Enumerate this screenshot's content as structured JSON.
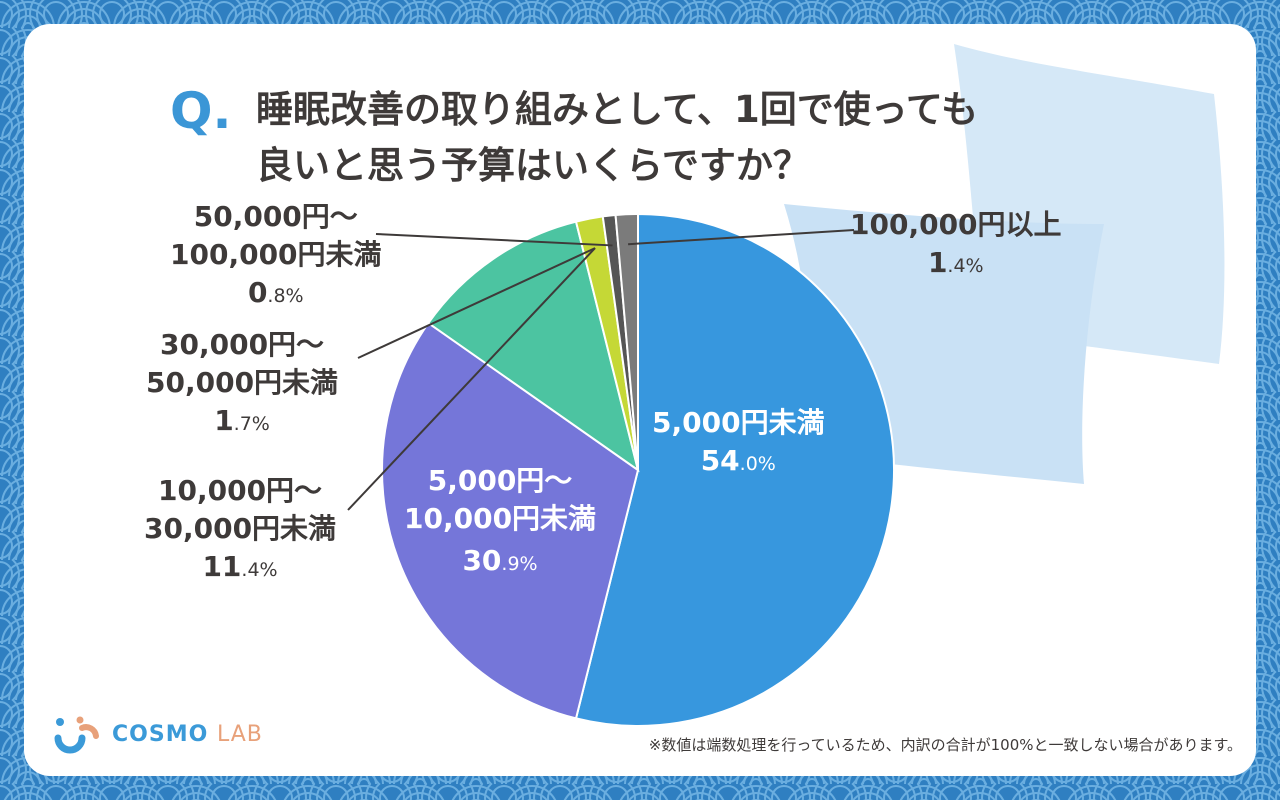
{
  "title": {
    "q_mark": "Q.",
    "line1": "睡眠改善の取り組みとして、1回で使っても",
    "line2": "良いと思う予算はいくらですか？"
  },
  "chart_data": {
    "type": "pie",
    "start": "12 o'clock",
    "direction": "clockwise",
    "slices": [
      {
        "label_lines": [
          "5,000円未満"
        ],
        "value_main": "54",
        "value_decimal": ".0%",
        "value": 54.0,
        "color": "#3797de"
      },
      {
        "label_lines": [
          "5,000円〜",
          "10,000円未満"
        ],
        "value_main": "30",
        "value_decimal": ".9%",
        "value": 30.9,
        "color": "#7576d9"
      },
      {
        "label_lines": [
          "10,000円〜",
          "30,000円未満"
        ],
        "value_main": "11",
        "value_decimal": ".4%",
        "value": 11.4,
        "color": "#4cc4a1"
      },
      {
        "label_lines": [
          "30,000円〜",
          "50,000円未満"
        ],
        "value_main": "1",
        "value_decimal": ".7%",
        "value": 1.7,
        "color": "#c5d836"
      },
      {
        "label_lines": [
          "50,000円〜",
          "100,000円未満"
        ],
        "value_main": "0",
        "value_decimal": ".8%",
        "value": 0.8,
        "color": "#555555"
      },
      {
        "label_lines": [
          "100,000円以上"
        ],
        "value_main": "1",
        "value_decimal": ".4%",
        "value": 1.4,
        "color": "#7b7b7b"
      }
    ]
  },
  "logo": {
    "cosmo": "COSMO",
    "lab": "LAB"
  },
  "footnote": "※数値は端数処理を行っているため、内訳の合計が100%と一致しない場合があります。",
  "colors": {
    "background": "#2f7fc1",
    "accent": "#3b96d6",
    "text": "#3e3a39"
  }
}
